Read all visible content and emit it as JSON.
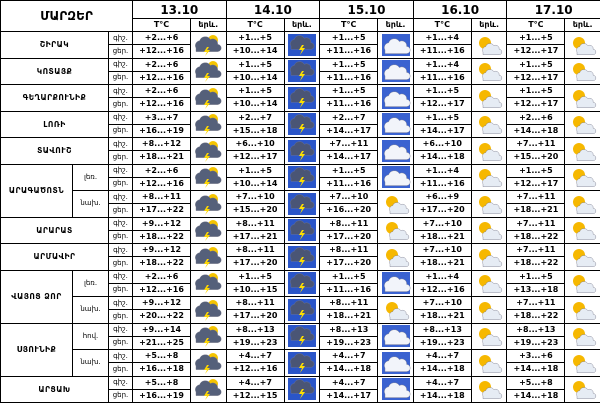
{
  "header": {
    "region": "ՄԱՐԶԵՐ",
    "dates": [
      "13.10",
      "14.10",
      "15.10",
      "16.10",
      "17.10"
    ],
    "temp": "T°C",
    "icon": "երև."
  },
  "periods": [
    "գիշ.",
    "ցեր."
  ],
  "regions": [
    {
      "name": "ՇԻՐԱԿ",
      "areas": [
        {
          "night": [
            "+2...+6",
            "+1...+5",
            "+1...+5",
            "+1...+4",
            "+1...+5"
          ],
          "day": [
            "+12...+16",
            "+10...+14",
            "+11...+16",
            "+11...+16",
            "+12...+17"
          ],
          "icons": [
            "storm",
            "storm-sky",
            "cloud-sky",
            "sun-cloud",
            "sun-cloud"
          ]
        }
      ]
    },
    {
      "name": "ԿՈՏԱՅՔ",
      "areas": [
        {
          "night": [
            "+2...+6",
            "+1...+5",
            "+1...+5",
            "+1...+4",
            "+1...+5"
          ],
          "day": [
            "+12...+16",
            "+10...+14",
            "+11...+16",
            "+11...+16",
            "+12...+17"
          ],
          "icons": [
            "storm",
            "storm-sky",
            "cloud-sky",
            "sun-cloud",
            "sun-cloud"
          ]
        }
      ]
    },
    {
      "name": "ԳԵՂԱՐՔՈՒՆԻՔ",
      "areas": [
        {
          "night": [
            "+2...+6",
            "+1...+5",
            "+1...+5",
            "+1...+5",
            "+1...+5"
          ],
          "day": [
            "+12...+16",
            "+10...+14",
            "+11...+16",
            "+12...+17",
            "+12...+17"
          ],
          "icons": [
            "storm",
            "storm-sky",
            "cloud-sky",
            "sun-cloud",
            "sun-cloud"
          ]
        }
      ]
    },
    {
      "name": "ԼՈՌԻ",
      "areas": [
        {
          "night": [
            "+3...+7",
            "+2...+7",
            "+2...+7",
            "+1...+5",
            "+2...+6"
          ],
          "day": [
            "+16...+19",
            "+15...+18",
            "+14...+17",
            "+14...+17",
            "+14...+18"
          ],
          "icons": [
            "storm",
            "storm-sky",
            "cloud-sky",
            "sun-cloud",
            "sun-cloud"
          ]
        }
      ]
    },
    {
      "name": "ՏԱՎՈՒՇ",
      "areas": [
        {
          "night": [
            "+8...+12",
            "+6...+10",
            "+7...+11",
            "+6...+10",
            "+7...+11"
          ],
          "day": [
            "+18...+21",
            "+12...+17",
            "+14...+17",
            "+14...+18",
            "+15...+20"
          ],
          "icons": [
            "storm",
            "storm-sky",
            "cloud-sky",
            "sun-cloud",
            "sun-cloud"
          ]
        }
      ]
    },
    {
      "name": "ԱՐԱԳԱԾՈՏՆ",
      "areas": [
        {
          "name": "լեռ.",
          "night": [
            "+2...+6",
            "+1...+5",
            "+1...+5",
            "+1...+4",
            "+1...+5"
          ],
          "day": [
            "+12...+16",
            "+10...+14",
            "+11...+16",
            "+11...+16",
            "+12...+17"
          ],
          "icons": [
            "storm",
            "storm-sky",
            "cloud-sky",
            "sun-cloud",
            "sun-cloud"
          ]
        },
        {
          "name": "նախ.",
          "night": [
            "+8...+11",
            "+7...+10",
            "+7...+10",
            "+6...+9",
            "+7...+11"
          ],
          "day": [
            "+17...+22",
            "+15...+20",
            "+16...+20",
            "+17...+20",
            "+18...+21"
          ],
          "icons": [
            "storm",
            "storm-sky",
            "sun-cloud",
            "sun-cloud",
            "sun-cloud"
          ]
        }
      ]
    },
    {
      "name": "ԱՐԱՐԱՏ",
      "areas": [
        {
          "night": [
            "+9...+12",
            "+8...+11",
            "+8...+11",
            "+7...+10",
            "+7...+11"
          ],
          "day": [
            "+18...+22",
            "+17...+21",
            "+17...+20",
            "+18...+21",
            "+18...+22"
          ],
          "icons": [
            "storm",
            "storm-sky",
            "sun-cloud",
            "sun-cloud",
            "sun-cloud"
          ]
        }
      ]
    },
    {
      "name": "ԱՐՄԱՎԻՐ",
      "areas": [
        {
          "night": [
            "+9...+12",
            "+8...+11",
            "+8...+11",
            "+7...+10",
            "+7...+11"
          ],
          "day": [
            "+18...+22",
            "+17...+20",
            "+17...+20",
            "+18...+21",
            "+18...+22"
          ],
          "icons": [
            "storm",
            "storm-sky",
            "sun-cloud",
            "sun-cloud",
            "sun-cloud"
          ]
        }
      ]
    },
    {
      "name": "ՎԱՅՈՑ ՁՈՐ",
      "areas": [
        {
          "name": "լեռ.",
          "night": [
            "+2...+6",
            "+1...+5",
            "+1...+5",
            "+1...+4",
            "+1...+5"
          ],
          "day": [
            "+12...+16",
            "+10...+15",
            "+11...+16",
            "+12...+16",
            "+13...+18"
          ],
          "icons": [
            "storm",
            "storm-sky",
            "cloud-sky",
            "sun-cloud",
            "sun-cloud"
          ]
        },
        {
          "name": "նախ.",
          "night": [
            "+9...+12",
            "+8...+11",
            "+8...+11",
            "+7...+10",
            "+7...+11"
          ],
          "day": [
            "+20...+22",
            "+17...+20",
            "+18...+21",
            "+18...+21",
            "+18...+22"
          ],
          "icons": [
            "storm",
            "storm-sky",
            "sun-cloud",
            "sun-cloud",
            "sun-cloud"
          ]
        }
      ]
    },
    {
      "name": "ՍՅՈՒՆԻՔ",
      "areas": [
        {
          "name": "հով.",
          "night": [
            "+9...+14",
            "+8...+13",
            "+8...+13",
            "+8...+13",
            "+8...+13"
          ],
          "day": [
            "+21...+25",
            "+19...+23",
            "+19...+23",
            "+19...+23",
            "+19...+23"
          ],
          "icons": [
            "storm",
            "storm-sky",
            "cloud-sky",
            "sun-cloud",
            "sun-cloud"
          ]
        },
        {
          "name": "նախ.",
          "night": [
            "+5...+8",
            "+4...+7",
            "+4...+7",
            "+4...+7",
            "+3...+6"
          ],
          "day": [
            "+16...+18",
            "+12...+16",
            "+14...+18",
            "+14...+18",
            "+14...+18"
          ],
          "icons": [
            "storm",
            "storm-sky",
            "cloud-sky",
            "sun-cloud",
            "sun-cloud"
          ]
        }
      ]
    },
    {
      "name": "ԱՐՑԱԽ",
      "areas": [
        {
          "night": [
            "+5...+8",
            "+4...+7",
            "+4...+7",
            "+4...+7",
            "+5...+8"
          ],
          "day": [
            "+16...+19",
            "+12...+15",
            "+14...+17",
            "+14...+18",
            "+14...+18"
          ],
          "icons": [
            "storm",
            "storm-sky",
            "cloud-sky",
            "sun-cloud",
            "sun-cloud"
          ]
        }
      ]
    }
  ]
}
